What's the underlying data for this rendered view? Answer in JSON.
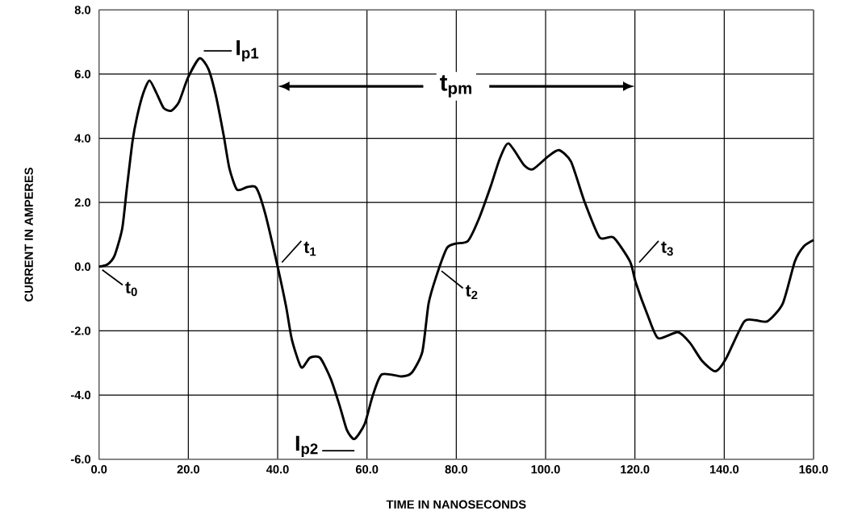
{
  "chart_data": {
    "type": "line",
    "xlabel": "TIME IN NANOSECONDS",
    "ylabel": "CURRENT IN AMPERES",
    "xlim": [
      0,
      160
    ],
    "ylim": [
      -6,
      8
    ],
    "xticks": [
      {
        "value": 0,
        "label": "0.0"
      },
      {
        "value": 20,
        "label": "20.0"
      },
      {
        "value": 40,
        "label": "40.0"
      },
      {
        "value": 60,
        "label": "60.0"
      },
      {
        "value": 80,
        "label": "80.0"
      },
      {
        "value": 100,
        "label": "100.0"
      },
      {
        "value": 120,
        "label": "120.0"
      },
      {
        "value": 140,
        "label": "140.0"
      },
      {
        "value": 160,
        "label": "160.0"
      }
    ],
    "yticks": [
      {
        "value": -6,
        "label": "-6.0"
      },
      {
        "value": -4,
        "label": "-4.0"
      },
      {
        "value": -2,
        "label": "-2.0"
      },
      {
        "value": 0,
        "label": "0.0"
      },
      {
        "value": 2,
        "label": "2.0"
      },
      {
        "value": 4,
        "label": "4.0"
      },
      {
        "value": 6,
        "label": "6.0"
      },
      {
        "value": 8,
        "label": "8.0"
      }
    ],
    "grid": true,
    "series": [
      {
        "color": "#000000",
        "x": [
          0,
          1.9,
          3.5,
          5.2,
          6.2,
          7.5,
          8.5,
          9.9,
          11.3,
          12.9,
          14.5,
          16.2,
          17.9,
          19.9,
          22.5,
          24.5,
          26.2,
          27.9,
          29.2,
          30.9,
          33.2,
          35.2,
          37.2,
          40,
          41.9,
          43.2,
          45.3,
          47.2,
          49.5,
          51.9,
          53.9,
          55.5,
          57.2,
          59.5,
          61.2,
          63.3,
          67.7,
          70.0,
          72.4,
          73.8,
          75.5,
          77.9,
          79.9,
          82.6,
          85.0,
          87.7,
          89.7,
          91.7,
          95.2,
          97.2,
          100.6,
          103.0,
          105.7,
          108.7,
          112.1,
          115.2,
          118.9,
          120.2,
          122.9,
          125.2,
          129.6,
          132.3,
          135.0,
          138.0,
          140.3,
          144.4,
          147.0,
          149.7,
          153.1,
          155.8,
          157.8,
          160
        ],
        "values": [
          0,
          0.07,
          0.35,
          1.19,
          2.4,
          3.9,
          4.66,
          5.4,
          5.8,
          5.4,
          4.94,
          4.86,
          5.13,
          5.88,
          6.49,
          6.16,
          5.31,
          4.1,
          3.06,
          2.4,
          2.48,
          2.46,
          1.66,
          0,
          -1.25,
          -2.28,
          -3.14,
          -2.84,
          -2.84,
          -3.5,
          -4.34,
          -5.09,
          -5.37,
          -4.9,
          -4.06,
          -3.36,
          -3.42,
          -3.31,
          -2.65,
          -1.15,
          -0.31,
          0.58,
          0.72,
          0.8,
          1.47,
          2.5,
          3.35,
          3.84,
          3.16,
          3.04,
          3.44,
          3.63,
          3.27,
          2.03,
          0.91,
          0.91,
          0.16,
          -0.5,
          -1.53,
          -2.23,
          -2.04,
          -2.37,
          -2.93,
          -3.26,
          -2.89,
          -1.72,
          -1.67,
          -1.7,
          -1.15,
          0.16,
          0.63,
          0.83
        ]
      }
    ],
    "annotations": [
      {
        "text": "t$_{0}$",
        "x": 0,
        "y": 0
      },
      {
        "text": "t$_{1}$",
        "x": 40,
        "y": 0
      },
      {
        "text": "t$_{2}$",
        "x": 76.2,
        "y": 0
      },
      {
        "text": "t$_{3}$",
        "x": 120,
        "y": 0
      },
      {
        "text": "I$_{p1}$",
        "x": 22.5,
        "y": 6.49
      },
      {
        "text": "I$_{p2}$",
        "x": 57.2,
        "y": -5.37
      },
      "t$_{pm}$"
    ]
  }
}
